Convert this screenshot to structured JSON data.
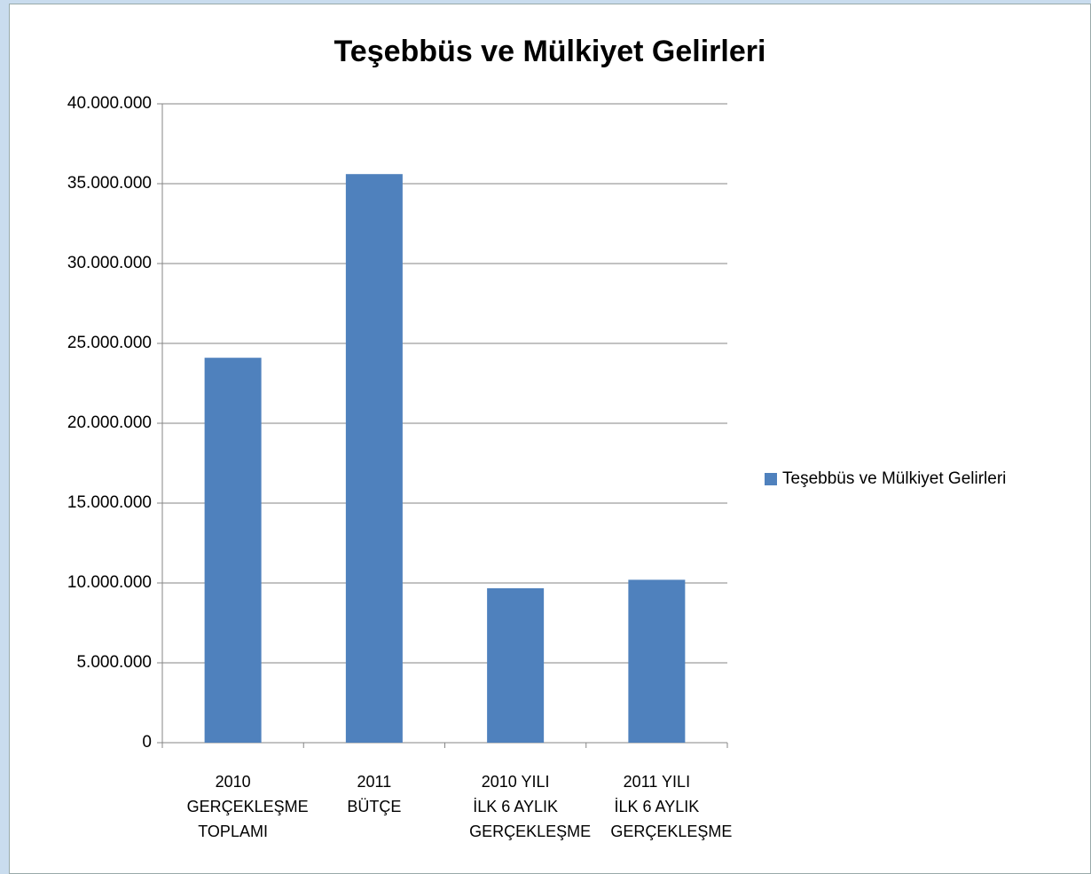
{
  "chart_data": {
    "type": "bar",
    "title": "Teşebbüs ve Mülkiyet Gelirleri",
    "categories": [
      "2010 GERÇEKLEŞME TOPLAMI",
      "2011 BÜTÇE",
      "2010 YILI İLK 6 AYLIK GERÇEKLEŞME",
      "2011 YILI İLK 6 AYLIK GERÇEKLEŞME"
    ],
    "series": [
      {
        "name": "Teşebbüs ve Mülkiyet Gelirleri",
        "color": "#4f81bd",
        "values": [
          24100000,
          35600000,
          9670000,
          10200000
        ]
      }
    ],
    "ylim": [
      0,
      40000000
    ],
    "yticks": [
      0,
      {
        "value": 5000000,
        "label": "5.000.000"
      },
      {
        "value": 10000000,
        "label": "10.000.000"
      },
      {
        "value": 15000000,
        "label": "15.000.000"
      },
      {
        "value": 20000000,
        "label": "20.000.000"
      },
      {
        "value": 25000000,
        "label": "25.000.000"
      },
      {
        "value": 30000000,
        "label": "30.000.000"
      },
      {
        "value": 35000000,
        "label": "35.000.000"
      },
      {
        "value": 40000000,
        "label": "40.000.000"
      }
    ],
    "grid": true,
    "legend": "right"
  }
}
